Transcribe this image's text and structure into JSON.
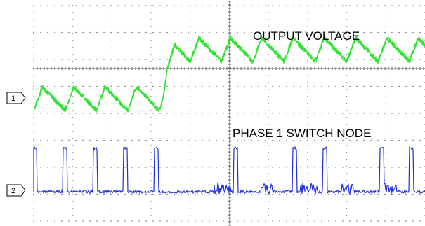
{
  "chart_data": {
    "type": "line",
    "title": "",
    "xlabel": "",
    "ylabel": "",
    "grid": true,
    "channels": [
      {
        "marker": "1",
        "name": "OUTPUT VOLTAGE",
        "color": "#2fe02f",
        "description_kind": "sawtooth ripple that steps up to a higher level partway across"
      },
      {
        "marker": "2",
        "name": "PHASE 1 SWITCH NODE",
        "color": "#1f2fe0",
        "description_kind": "low baseline with narrow high pulses and ringing bursts"
      }
    ]
  }
}
